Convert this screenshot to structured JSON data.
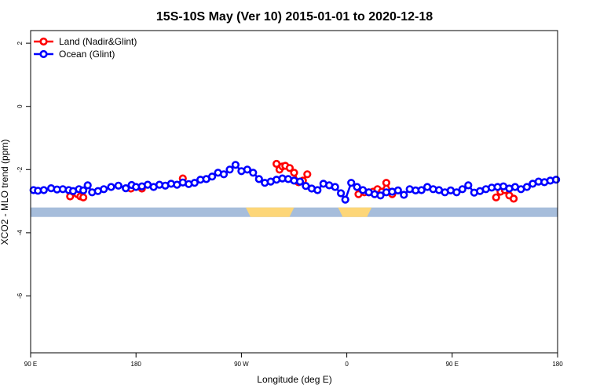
{
  "chart_data": {
    "type": "line",
    "title": "15S-10S May (Ver 10)   2015-01-01 to 2020-12-18",
    "xlabel": "Longitude (deg E)",
    "ylabel": "XCO2 - MLO trend (ppm)",
    "xlim": [
      90,
      450
    ],
    "ylim": [
      -7.8,
      2.4
    ],
    "x_ticks": [
      {
        "value": 90,
        "label": "90 E"
      },
      {
        "value": 162,
        "label": "180"
      },
      {
        "value": 234,
        "label": "90 W"
      },
      {
        "value": 306,
        "label": "0"
      },
      {
        "value": 378,
        "label": "90 E"
      },
      {
        "value": 450,
        "label": "180"
      }
    ],
    "y_ticks": [
      {
        "value": 2,
        "label": "2"
      },
      {
        "value": 0,
        "label": "0"
      },
      {
        "value": -2,
        "label": "-2"
      },
      {
        "value": -4,
        "label": "-4"
      },
      {
        "value": -6,
        "label": "-6"
      }
    ],
    "legend": {
      "position": "top-left"
    },
    "land_mask": {
      "y_range": [
        -3.5,
        -3.2
      ],
      "ocean_color": "#a6bddb",
      "land_color": "#fdd678",
      "land_spans": [
        [
          237,
          270
        ],
        [
          300,
          323
        ]
      ]
    },
    "series": [
      {
        "name": "Land (Nadir&Glint)",
        "color": "#ff0000",
        "segments": [
          [
            [
              117,
              -2.85
            ],
            [
              119,
              -2.7
            ],
            [
              122,
              -2.78
            ],
            [
              124,
              -2.85
            ],
            [
              126,
              -2.88
            ]
          ],
          [
            [
              158.5,
              -2.6
            ],
            [
              166,
              -2.6
            ]
          ],
          [
            [
              194,
              -2.28
            ]
          ],
          [
            [
              258,
              -1.82
            ],
            [
              260,
              -2.0
            ],
            [
              262,
              -1.9
            ],
            [
              264,
              -1.88
            ],
            [
              267,
              -1.95
            ],
            [
              270,
              -2.1
            ],
            [
              273,
              -2.4
            ],
            [
              276,
              -2.35
            ],
            [
              279,
              -2.15
            ]
          ],
          [
            [
              314,
              -2.78
            ],
            [
              318,
              -2.72
            ],
            [
              321,
              -2.72
            ],
            [
              324,
              -2.7
            ],
            [
              327,
              -2.62
            ],
            [
              330,
              -2.7
            ],
            [
              333,
              -2.42
            ],
            [
              337,
              -2.78
            ]
          ],
          [
            [
              408,
              -2.88
            ],
            [
              411,
              -2.7
            ],
            [
              414,
              -2.65
            ],
            [
              417,
              -2.82
            ],
            [
              420,
              -2.92
            ]
          ]
        ]
      },
      {
        "name": "Ocean (Glint)",
        "color": "#0000ff",
        "points": [
          [
            92,
            -2.65
          ],
          [
            95,
            -2.67
          ],
          [
            99,
            -2.65
          ],
          [
            104,
            -2.59
          ],
          [
            108,
            -2.63
          ],
          [
            112,
            -2.62
          ],
          [
            116,
            -2.65
          ],
          [
            119,
            -2.68
          ],
          [
            123,
            -2.62
          ],
          [
            126,
            -2.66
          ],
          [
            129,
            -2.5
          ],
          [
            132,
            -2.72
          ],
          [
            136,
            -2.68
          ],
          [
            140,
            -2.62
          ],
          [
            145,
            -2.55
          ],
          [
            150,
            -2.51
          ],
          [
            155,
            -2.59
          ],
          [
            159,
            -2.49
          ],
          [
            162,
            -2.55
          ],
          [
            166,
            -2.53
          ],
          [
            170,
            -2.48
          ],
          [
            174,
            -2.55
          ],
          [
            178,
            -2.48
          ],
          [
            182,
            -2.51
          ],
          [
            186,
            -2.45
          ],
          [
            190,
            -2.48
          ],
          [
            194,
            -2.41
          ],
          [
            198,
            -2.46
          ],
          [
            202,
            -2.42
          ],
          [
            206,
            -2.32
          ],
          [
            210,
            -2.3
          ],
          [
            214,
            -2.22
          ],
          [
            218,
            -2.1
          ],
          [
            222,
            -2.15
          ],
          [
            226,
            -2.0
          ],
          [
            230,
            -1.85
          ],
          [
            234,
            -2.05
          ],
          [
            238,
            -2.0
          ],
          [
            242,
            -2.1
          ],
          [
            246,
            -2.3
          ],
          [
            250,
            -2.42
          ],
          [
            254,
            -2.38
          ],
          [
            258,
            -2.32
          ],
          [
            262,
            -2.28
          ],
          [
            266,
            -2.3
          ],
          [
            270,
            -2.35
          ],
          [
            274,
            -2.38
          ],
          [
            278,
            -2.52
          ],
          [
            282,
            -2.6
          ],
          [
            286,
            -2.65
          ],
          [
            290,
            -2.45
          ],
          [
            294,
            -2.5
          ],
          [
            298,
            -2.55
          ],
          [
            302,
            -2.75
          ],
          [
            305,
            -2.95
          ],
          [
            309,
            -2.42
          ],
          [
            313,
            -2.55
          ],
          [
            317,
            -2.65
          ],
          [
            321,
            -2.72
          ],
          [
            325,
            -2.78
          ],
          [
            329,
            -2.82
          ],
          [
            333,
            -2.72
          ],
          [
            337,
            -2.7
          ],
          [
            341,
            -2.66
          ],
          [
            345,
            -2.8
          ],
          [
            349,
            -2.62
          ],
          [
            353,
            -2.66
          ],
          [
            357,
            -2.65
          ],
          [
            361,
            -2.55
          ],
          [
            365,
            -2.62
          ],
          [
            369,
            -2.65
          ],
          [
            373,
            -2.72
          ],
          [
            377,
            -2.66
          ],
          [
            381,
            -2.72
          ],
          [
            385,
            -2.62
          ],
          [
            389,
            -2.5
          ],
          [
            393,
            -2.73
          ],
          [
            397,
            -2.68
          ],
          [
            401,
            -2.62
          ],
          [
            405,
            -2.57
          ],
          [
            409,
            -2.55
          ],
          [
            413,
            -2.53
          ],
          [
            417,
            -2.6
          ],
          [
            421,
            -2.55
          ],
          [
            425,
            -2.62
          ],
          [
            429,
            -2.55
          ],
          [
            433,
            -2.45
          ],
          [
            437,
            -2.38
          ],
          [
            441,
            -2.4
          ],
          [
            445,
            -2.35
          ],
          [
            449,
            -2.32
          ]
        ]
      }
    ]
  }
}
